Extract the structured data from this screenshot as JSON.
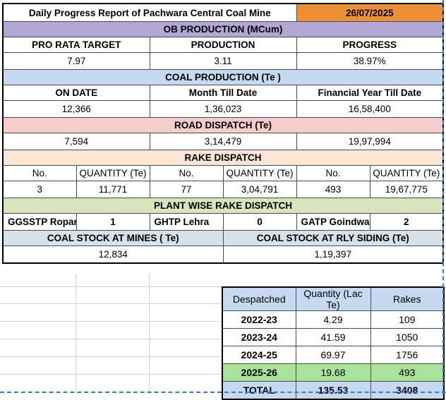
{
  "report": {
    "title": "Daily Progress Report of Pachwara Central Coal Mine",
    "date": "26/07/2025",
    "ob_production": {
      "header": "OB PRODUCTION (MCum)",
      "labels": [
        "PRO RATA TARGET",
        "PRODUCTION",
        "PROGRESS"
      ],
      "values": [
        "7.97",
        "3.11",
        "38.97%"
      ]
    },
    "coal_production": {
      "header": "COAL PRODUCTION (Te )",
      "labels": [
        "ON DATE",
        "Month Till Date",
        "Financial Year Till Date"
      ],
      "values": [
        "12,366",
        "1,36,023",
        "16,58,400"
      ]
    },
    "road_dispatch": {
      "header": "ROAD DISPATCH (Te)",
      "values": [
        "7,594",
        "3,14,479",
        "19,97,994"
      ]
    },
    "rake_dispatch": {
      "header": "RAKE DISPATCH",
      "labels": [
        "No.",
        "QUANTITY (Te)",
        "No.",
        "QUANTITY (Te)",
        "No.",
        "QUANTITY (Te)"
      ],
      "values": [
        "3",
        "11,771",
        "77",
        "3,04,791",
        "493",
        "19,67,775"
      ]
    },
    "plant_wise": {
      "header": "PLANT WISE RAKE DISPATCH",
      "plants": [
        {
          "name": "GGSSTP Ropar",
          "value": "1"
        },
        {
          "name": "GHTP Lehra",
          "value": "0"
        },
        {
          "name": "GATP Goindwal",
          "value": "2"
        }
      ]
    },
    "coal_stock": {
      "labels": [
        "COAL STOCK AT MINES ( Te)",
        "COAL STOCK AT RLY SIDING (Te)"
      ],
      "values": [
        "12,834",
        "1,19,397"
      ]
    }
  },
  "yearly": {
    "headers": [
      "Despatched",
      "Quantity (Lac Te)",
      "Rakes"
    ],
    "rows": [
      {
        "year": "2022-23",
        "qty": "4.29",
        "rakes": "109"
      },
      {
        "year": "2023-24",
        "qty": "41.59",
        "rakes": "1050"
      },
      {
        "year": "2024-25",
        "qty": "69.97",
        "rakes": "1756"
      },
      {
        "year": "2025-26",
        "qty": "19.68",
        "rakes": "493"
      }
    ],
    "total": {
      "label": "TOTAL",
      "qty": "135.53",
      "rakes": "3408"
    }
  },
  "colors": {
    "date_bg": "#ec8f35",
    "ob_header": "#b4a7d6",
    "coal_header": "#c5d9f1",
    "road_header": "#f4cccc",
    "rake_header": "#fce4d6",
    "plant_header": "#d8e4bc",
    "current_year_row": "#a9e39a",
    "page_break": "#3b78c6"
  }
}
